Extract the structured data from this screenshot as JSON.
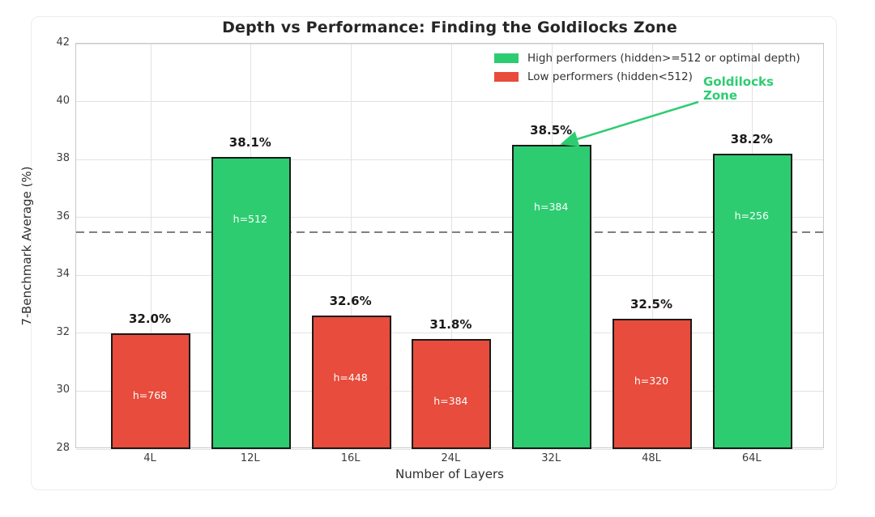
{
  "chart_data": {
    "type": "bar",
    "title": "Depth vs Performance: Finding the Goldilocks Zone",
    "xlabel": "Number of Layers",
    "ylabel": "7-Benchmark Average (%)",
    "categories": [
      "4L",
      "12L",
      "16L",
      "24L",
      "32L",
      "48L",
      "64L"
    ],
    "values": [
      32.0,
      38.1,
      32.6,
      31.8,
      38.5,
      32.5,
      38.2
    ],
    "bar_value_labels": [
      "32.0%",
      "38.1%",
      "32.6%",
      "31.8%",
      "38.5%",
      "32.5%",
      "38.2%"
    ],
    "hidden_size_labels": [
      "h=768",
      "h=512",
      "h=448",
      "h=384",
      "h=384",
      "h=320",
      "h=256"
    ],
    "bar_groups": [
      "low",
      "high",
      "low",
      "low",
      "high",
      "low",
      "high"
    ],
    "colors": {
      "high": "#2ecc71",
      "low": "#e74c3c",
      "bar_edge": "#1a1a1a",
      "grid": "#e2e2e2",
      "threshold": "#808080",
      "annotation": "#2ecc71"
    },
    "ylim": [
      28,
      42
    ],
    "yticks": [
      "28",
      "30",
      "32",
      "34",
      "36",
      "38",
      "40",
      "42"
    ],
    "grid": true,
    "threshold_line": {
      "value": 35.5,
      "style": "dashed"
    },
    "legend": {
      "position": "upper-right",
      "entries": [
        {
          "label": "High performers (hidden>=512 or optimal depth)",
          "color": "#2ecc71"
        },
        {
          "label": "Low performers (hidden<512)",
          "color": "#e74c3c"
        }
      ]
    },
    "annotation": {
      "text": "Goldilocks\nZone",
      "target_category": "32L",
      "target_value": 38.5
    }
  }
}
